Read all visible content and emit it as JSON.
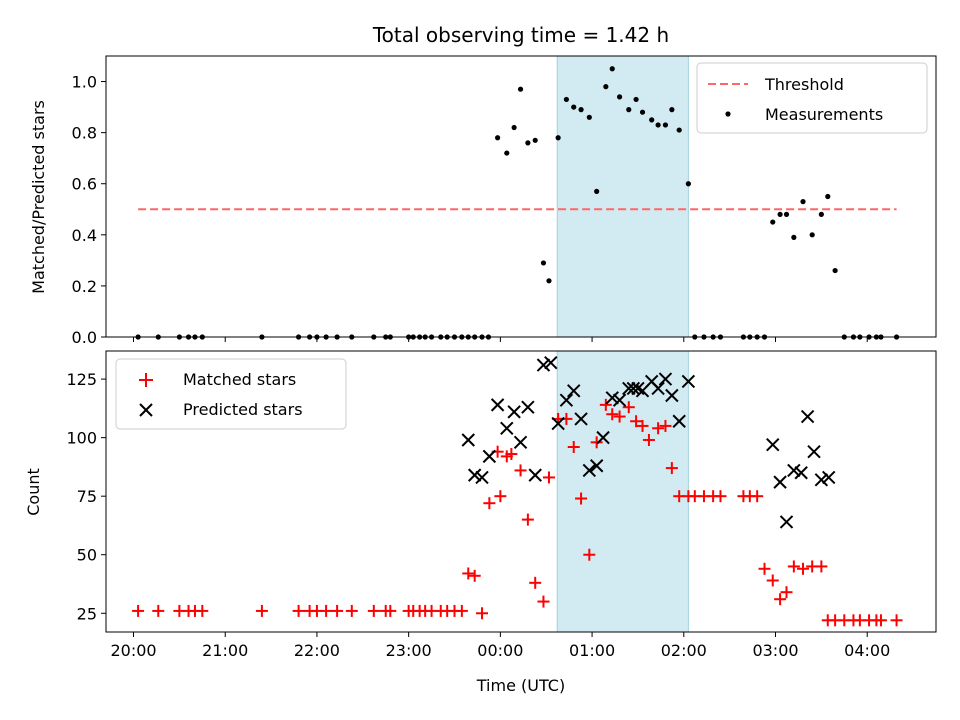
{
  "chart_data": [
    {
      "type": "scatter",
      "panel": "top",
      "title": "Total observing time = 1.42 h",
      "xlabel": "",
      "ylabel": "Matched/Predicted stars",
      "x_unit": "hours since 20:00 UTC",
      "xlim": [
        -0.3,
        8.75
      ],
      "ylim": [
        0,
        1.1
      ],
      "yticks": [
        0.0,
        0.2,
        0.4,
        0.6,
        0.8,
        1.0
      ],
      "ytick_labels": [
        "0.0",
        "0.2",
        "0.4",
        "0.6",
        "0.8",
        "1.0"
      ],
      "shaded_region": [
        4.62,
        6.05
      ],
      "shaded_color": "#add8e6",
      "legend_position": "top-right",
      "series": [
        {
          "name": "Threshold",
          "style": "dashed-line",
          "color": "#ff6666",
          "x": [
            0.05,
            8.32
          ],
          "y": [
            0.5,
            0.5
          ]
        },
        {
          "name": "Measurements",
          "style": "dot",
          "color": "#000000",
          "x": [
            0.05,
            0.27,
            0.5,
            0.6,
            0.67,
            0.75,
            1.4,
            1.8,
            1.92,
            2.0,
            2.1,
            2.22,
            2.38,
            2.62,
            2.75,
            2.8,
            3.0,
            3.05,
            3.12,
            3.18,
            3.25,
            3.35,
            3.42,
            3.5,
            3.58,
            3.65,
            3.72,
            3.8,
            3.87,
            3.97,
            4.07,
            4.15,
            4.22,
            4.3,
            4.38,
            4.47,
            4.53,
            4.63,
            4.72,
            4.8,
            4.88,
            4.97,
            5.05,
            5.15,
            5.22,
            5.3,
            5.4,
            5.48,
            5.55,
            5.65,
            5.72,
            5.8,
            5.87,
            5.95,
            6.05,
            6.12,
            6.22,
            6.32,
            6.4,
            6.65,
            6.72,
            6.8,
            6.88,
            6.97,
            7.05,
            7.12,
            7.2,
            7.3,
            7.4,
            7.5,
            7.57,
            7.65,
            7.75,
            7.85,
            7.92,
            8.02,
            8.1,
            8.15,
            8.32
          ],
          "y": [
            0.0,
            0.0,
            0.0,
            0.0,
            0.0,
            0.0,
            0.0,
            0.0,
            0.0,
            0.0,
            0.0,
            0.0,
            0.0,
            0.0,
            0.0,
            0.0,
            0.0,
            0.0,
            0.0,
            0.0,
            0.0,
            0.0,
            0.0,
            0.0,
            0.0,
            0.0,
            0.0,
            0.0,
            0.0,
            0.78,
            0.72,
            0.82,
            0.97,
            0.76,
            0.77,
            0.29,
            0.22,
            0.78,
            0.93,
            0.9,
            0.89,
            0.86,
            0.57,
            0.98,
            1.05,
            0.94,
            0.89,
            0.93,
            0.88,
            0.85,
            0.83,
            0.83,
            0.89,
            0.81,
            0.6,
            0.0,
            0.0,
            0.0,
            0.0,
            0.0,
            0.0,
            0.0,
            0.0,
            0.45,
            0.48,
            0.48,
            0.39,
            0.53,
            0.4,
            0.48,
            0.55,
            0.26,
            0.0,
            0.0,
            0.0,
            0.0,
            0.0,
            0.0,
            0.0
          ]
        }
      ]
    },
    {
      "type": "scatter",
      "panel": "bottom",
      "title": "",
      "xlabel": "Time (UTC)",
      "ylabel": "Count",
      "x_unit": "hours since 20:00 UTC",
      "xlim": [
        -0.3,
        8.75
      ],
      "ylim": [
        17,
        137
      ],
      "yticks": [
        25,
        50,
        75,
        100,
        125
      ],
      "ytick_labels": [
        "25",
        "50",
        "75",
        "100",
        "125"
      ],
      "xticks": [
        0,
        1,
        2,
        3,
        4,
        5,
        6,
        7,
        8
      ],
      "xtick_labels": [
        "20:00",
        "21:00",
        "22:00",
        "23:00",
        "00:00",
        "01:00",
        "02:00",
        "03:00",
        "04:00"
      ],
      "shaded_region": [
        4.62,
        6.05
      ],
      "shaded_color": "#add8e6",
      "legend_position": "top-left",
      "series": [
        {
          "name": "Matched stars",
          "style": "plus",
          "color": "#ff0000",
          "x": [
            0.05,
            0.27,
            0.5,
            0.6,
            0.67,
            0.75,
            1.4,
            1.8,
            1.92,
            2.0,
            2.1,
            2.22,
            2.38,
            2.62,
            2.75,
            2.8,
            3.0,
            3.05,
            3.12,
            3.18,
            3.25,
            3.35,
            3.42,
            3.5,
            3.58,
            3.65,
            3.72,
            3.8,
            3.88,
            3.97,
            4.0,
            4.07,
            4.12,
            4.22,
            4.3,
            4.38,
            4.47,
            4.53,
            4.63,
            4.72,
            4.8,
            4.88,
            4.97,
            5.05,
            5.15,
            5.22,
            5.3,
            5.4,
            5.48,
            5.55,
            5.62,
            5.72,
            5.8,
            5.87,
            5.95,
            6.05,
            6.12,
            6.22,
            6.32,
            6.4,
            6.65,
            6.72,
            6.8,
            6.88,
            6.97,
            7.05,
            7.12,
            7.2,
            7.3,
            7.4,
            7.5,
            7.57,
            7.65,
            7.75,
            7.85,
            7.92,
            8.02,
            8.1,
            8.15,
            8.32
          ],
          "y": [
            26,
            26,
            26,
            26,
            26,
            26,
            26,
            26,
            26,
            26,
            26,
            26,
            26,
            26,
            26,
            26,
            26,
            26,
            26,
            26,
            26,
            26,
            26,
            26,
            26,
            42,
            41,
            25,
            72,
            94,
            75,
            92,
            93,
            86,
            65,
            38,
            30,
            83,
            108,
            108,
            96,
            74,
            50,
            98,
            114,
            110,
            109,
            113,
            107,
            105,
            99,
            104,
            105,
            87,
            75,
            75,
            75,
            75,
            75,
            75,
            75,
            75,
            75,
            44,
            39,
            31,
            34,
            45,
            44,
            45,
            45,
            22,
            22,
            22,
            22,
            22,
            22,
            22,
            22,
            22
          ]
        },
        {
          "name": "Predicted stars",
          "style": "x",
          "color": "#000000",
          "x": [
            3.65,
            3.72,
            3.8,
            3.88,
            3.97,
            4.07,
            4.15,
            4.22,
            4.3,
            4.38,
            4.47,
            4.55,
            4.63,
            4.72,
            4.8,
            4.88,
            4.97,
            5.05,
            5.12,
            5.22,
            5.3,
            5.4,
            5.45,
            5.5,
            5.55,
            5.65,
            5.72,
            5.8,
            5.87,
            5.95,
            6.05,
            6.97,
            7.05,
            7.12,
            7.2,
            7.28,
            7.35,
            7.42,
            7.5,
            7.58
          ],
          "y": [
            99,
            84,
            83,
            92,
            114,
            104,
            111,
            98,
            113,
            84,
            131,
            132,
            106,
            116,
            120,
            108,
            86,
            88,
            100,
            117,
            116,
            121,
            121,
            121,
            120,
            124,
            121,
            125,
            118,
            107,
            124,
            97,
            81,
            64,
            86,
            85,
            109,
            94,
            82,
            83
          ]
        }
      ]
    }
  ]
}
